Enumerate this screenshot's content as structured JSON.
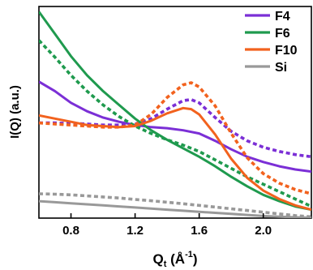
{
  "chart_data": {
    "type": "line",
    "title": "",
    "xlabel": "Q",
    "xlabel_sub": "t",
    "xlabel_unit_open": " (Å",
    "xlabel_unit_sup": "-1",
    "xlabel_unit_close": ")",
    "ylabel": "I(Q) (a.u.)",
    "xlim": [
      0.6,
      2.3
    ],
    "ylim": [
      0,
      1
    ],
    "y_tick_labels": false,
    "grid": false,
    "legend": {
      "position": "top-right"
    },
    "x_ticks": [
      {
        "value": 0.8,
        "label": "0.8"
      },
      {
        "value": 1.2,
        "label": "1.2"
      },
      {
        "value": 1.6,
        "label": "1.6"
      },
      {
        "value": 2.0,
        "label": "2.0"
      }
    ],
    "series": [
      {
        "name": "F4",
        "color": "#7B2FD6",
        "style": "solid",
        "legend": true,
        "points": [
          [
            0.6,
            0.645
          ],
          [
            0.7,
            0.6
          ],
          [
            0.8,
            0.545
          ],
          [
            0.9,
            0.505
          ],
          [
            1.0,
            0.475
          ],
          [
            1.1,
            0.455
          ],
          [
            1.2,
            0.44
          ],
          [
            1.3,
            0.43
          ],
          [
            1.4,
            0.425
          ],
          [
            1.5,
            0.415
          ],
          [
            1.6,
            0.4
          ],
          [
            1.7,
            0.365
          ],
          [
            1.8,
            0.325
          ],
          [
            1.9,
            0.29
          ],
          [
            2.0,
            0.265
          ],
          [
            2.1,
            0.245
          ],
          [
            2.2,
            0.23
          ],
          [
            2.3,
            0.22
          ]
        ]
      },
      {
        "name": "F4",
        "color": "#7B2FD6",
        "style": "dashed",
        "legend": false,
        "points": [
          [
            0.6,
            0.45
          ],
          [
            0.7,
            0.45
          ],
          [
            0.8,
            0.448
          ],
          [
            0.9,
            0.445
          ],
          [
            1.0,
            0.44
          ],
          [
            1.1,
            0.44
          ],
          [
            1.2,
            0.445
          ],
          [
            1.3,
            0.47
          ],
          [
            1.4,
            0.515
          ],
          [
            1.5,
            0.555
          ],
          [
            1.55,
            0.56
          ],
          [
            1.6,
            0.545
          ],
          [
            1.7,
            0.475
          ],
          [
            1.8,
            0.41
          ],
          [
            1.9,
            0.365
          ],
          [
            2.0,
            0.335
          ],
          [
            2.1,
            0.315
          ],
          [
            2.2,
            0.3
          ],
          [
            2.3,
            0.29
          ]
        ]
      },
      {
        "name": "F6",
        "color": "#1F9A4E",
        "style": "solid",
        "legend": true,
        "points": [
          [
            0.6,
            0.975
          ],
          [
            0.7,
            0.87
          ],
          [
            0.8,
            0.765
          ],
          [
            0.9,
            0.675
          ],
          [
            1.0,
            0.6
          ],
          [
            1.1,
            0.535
          ],
          [
            1.2,
            0.47
          ],
          [
            1.3,
            0.415
          ],
          [
            1.4,
            0.37
          ],
          [
            1.5,
            0.33
          ],
          [
            1.6,
            0.29
          ],
          [
            1.7,
            0.245
          ],
          [
            1.8,
            0.195
          ],
          [
            1.9,
            0.15
          ],
          [
            2.0,
            0.11
          ],
          [
            2.1,
            0.08
          ],
          [
            2.2,
            0.055
          ],
          [
            2.3,
            0.04
          ]
        ]
      },
      {
        "name": "F6",
        "color": "#1F9A4E",
        "style": "dashed",
        "legend": false,
        "points": [
          [
            0.6,
            0.84
          ],
          [
            0.7,
            0.76
          ],
          [
            0.8,
            0.675
          ],
          [
            0.9,
            0.6
          ],
          [
            1.0,
            0.535
          ],
          [
            1.1,
            0.48
          ],
          [
            1.2,
            0.435
          ],
          [
            1.3,
            0.4
          ],
          [
            1.4,
            0.37
          ],
          [
            1.5,
            0.345
          ],
          [
            1.6,
            0.315
          ],
          [
            1.7,
            0.275
          ],
          [
            1.8,
            0.235
          ],
          [
            1.9,
            0.195
          ],
          [
            2.0,
            0.16
          ],
          [
            2.1,
            0.125
          ],
          [
            2.2,
            0.09
          ],
          [
            2.3,
            0.055
          ]
        ]
      },
      {
        "name": "F10",
        "color": "#F2621E",
        "style": "solid",
        "legend": true,
        "points": [
          [
            0.6,
            0.485
          ],
          [
            0.7,
            0.47
          ],
          [
            0.8,
            0.455
          ],
          [
            0.9,
            0.44
          ],
          [
            1.0,
            0.435
          ],
          [
            1.1,
            0.43
          ],
          [
            1.2,
            0.435
          ],
          [
            1.3,
            0.46
          ],
          [
            1.4,
            0.495
          ],
          [
            1.5,
            0.52
          ],
          [
            1.55,
            0.515
          ],
          [
            1.6,
            0.49
          ],
          [
            1.7,
            0.395
          ],
          [
            1.8,
            0.28
          ],
          [
            1.9,
            0.19
          ],
          [
            2.0,
            0.13
          ],
          [
            2.1,
            0.09
          ],
          [
            2.2,
            0.06
          ],
          [
            2.3,
            0.04
          ]
        ]
      },
      {
        "name": "F10",
        "color": "#F2621E",
        "style": "dashed",
        "legend": false,
        "points": [
          [
            0.6,
            0.45
          ],
          [
            0.7,
            0.445
          ],
          [
            0.8,
            0.44
          ],
          [
            0.9,
            0.435
          ],
          [
            1.0,
            0.43
          ],
          [
            1.1,
            0.43
          ],
          [
            1.2,
            0.44
          ],
          [
            1.3,
            0.49
          ],
          [
            1.4,
            0.57
          ],
          [
            1.5,
            0.63
          ],
          [
            1.55,
            0.64
          ],
          [
            1.6,
            0.62
          ],
          [
            1.7,
            0.53
          ],
          [
            1.8,
            0.4
          ],
          [
            1.9,
            0.285
          ],
          [
            2.0,
            0.21
          ],
          [
            2.1,
            0.165
          ],
          [
            2.2,
            0.135
          ],
          [
            2.3,
            0.115
          ]
        ]
      },
      {
        "name": "Si",
        "color": "#999999",
        "style": "solid",
        "legend": true,
        "points": [
          [
            0.6,
            0.08
          ],
          [
            0.7,
            0.075
          ],
          [
            0.8,
            0.07
          ],
          [
            0.9,
            0.065
          ],
          [
            1.0,
            0.06
          ],
          [
            1.1,
            0.055
          ],
          [
            1.2,
            0.05
          ],
          [
            1.3,
            0.045
          ],
          [
            1.4,
            0.04
          ],
          [
            1.5,
            0.035
          ],
          [
            1.6,
            0.03
          ],
          [
            1.7,
            0.025
          ],
          [
            1.8,
            0.02
          ],
          [
            1.9,
            0.015
          ],
          [
            2.0,
            0.01
          ],
          [
            2.1,
            0.007
          ],
          [
            2.2,
            0.004
          ],
          [
            2.3,
            0.002
          ]
        ]
      },
      {
        "name": "Si",
        "color": "#999999",
        "style": "dashed",
        "legend": false,
        "points": [
          [
            0.6,
            0.115
          ],
          [
            0.7,
            0.113
          ],
          [
            0.8,
            0.11
          ],
          [
            0.9,
            0.105
          ],
          [
            1.0,
            0.1
          ],
          [
            1.1,
            0.095
          ],
          [
            1.2,
            0.088
          ],
          [
            1.3,
            0.082
          ],
          [
            1.4,
            0.075
          ],
          [
            1.5,
            0.068
          ],
          [
            1.6,
            0.06
          ],
          [
            1.7,
            0.052
          ],
          [
            1.8,
            0.044
          ],
          [
            1.9,
            0.036
          ],
          [
            2.0,
            0.028
          ],
          [
            2.1,
            0.02
          ],
          [
            2.2,
            0.012
          ],
          [
            2.3,
            0.006
          ]
        ]
      }
    ]
  }
}
